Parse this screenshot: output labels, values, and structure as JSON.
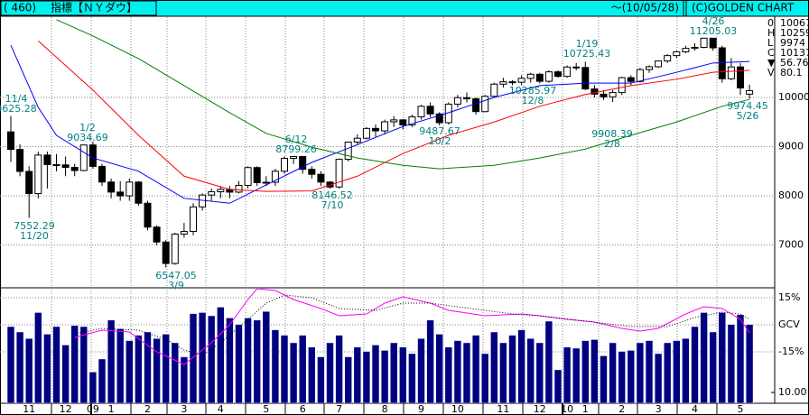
{
  "header": {
    "code": "( 460)",
    "title": "指標【ＮＹダウ】",
    "date": "～(10/05/28)",
    "brand": "(C)GOLDEN CHART"
  },
  "quote": [
    [
      "0",
      "10067"
    ],
    [
      "H",
      "10259"
    ],
    [
      "L",
      "9974"
    ],
    [
      "C",
      "10137"
    ],
    [
      "▼",
      "56.76"
    ],
    [
      "V",
      "80.1"
    ]
  ],
  "chart_data": {
    "type": "candlestick",
    "categories": [
      null,
      null,
      "11",
      null,
      null,
      null,
      "12",
      null,
      null,
      "09",
      null,
      "1",
      null,
      null,
      null,
      "2",
      null,
      null,
      null,
      "3",
      null,
      null,
      null,
      "4",
      null,
      null,
      null,
      null,
      "5",
      null,
      null,
      null,
      "6",
      null,
      null,
      null,
      "7",
      null,
      null,
      null,
      null,
      "8",
      null,
      null,
      null,
      "9",
      null,
      null,
      null,
      "10",
      null,
      null,
      null,
      null,
      "11",
      null,
      null,
      null,
      "12",
      null,
      null,
      "10",
      null,
      "1",
      null,
      null,
      null,
      "2",
      null,
      null,
      null,
      "3",
      null,
      null,
      null,
      "4",
      null,
      null,
      null,
      null,
      "5",
      null
    ],
    "open": [
      9300,
      8943,
      8497,
      8046,
      8829,
      8635,
      8629,
      8579,
      8515,
      9034,
      8599,
      8281,
      8077,
      8000,
      8280,
      7850,
      7365,
      7062,
      6626,
      7224,
      7278,
      7776,
      8017,
      8083,
      8131,
      8076,
      8212,
      8575,
      8268,
      8277,
      8500,
      8763,
      8799,
      8539,
      8438,
      8280,
      8180,
      8743,
      9093,
      9171,
      9370,
      9321,
      9505,
      9544,
      9441,
      9605,
      9820,
      9665,
      9487,
      9864,
      9995,
      9972,
      9712,
      10023,
      10270,
      10318,
      10309,
      10388,
      10471,
      10328,
      10520,
      10428,
      10618,
      10609,
      10172,
      10067,
      10012,
      10099,
      10402,
      10325,
      10566,
      10624,
      10741,
      10850,
      10927,
      10997,
      11018,
      11204,
      11008,
      10380,
      10620,
      10067
    ],
    "high": [
      9625.28,
      9050,
      8600,
      8900,
      8900,
      8850,
      8800,
      8650,
      9034.69,
      9100,
      8650,
      8350,
      8300,
      8350,
      8300,
      7900,
      7400,
      7100,
      7250,
      7450,
      7850,
      8050,
      8150,
      8200,
      8200,
      8300,
      8600,
      8600,
      8400,
      8550,
      8800,
      8799.26,
      8800,
      8600,
      8500,
      8300,
      8760,
      9100,
      9250,
      9400,
      9450,
      9550,
      9620,
      9560,
      9650,
      9850,
      9900,
      9700,
      9900,
      10050,
      10100,
      10000,
      10050,
      10300,
      10400,
      10350,
      10450,
      10500,
      10500,
      10550,
      10550,
      10650,
      10700,
      10725.43,
      10250,
      10150,
      10150,
      10420,
      10450,
      10600,
      10650,
      10750,
      10880,
      10950,
      11050,
      11100,
      11200,
      11205.03,
      11050,
      10800,
      10700,
      10259
    ],
    "low": [
      8690,
      8400,
      7552.29,
      7950,
      8150,
      8500,
      8400,
      8400,
      8500,
      8550,
      8200,
      7950,
      7900,
      7900,
      7800,
      7300,
      7000,
      6547.05,
      6600,
      7150,
      7200,
      7700,
      7900,
      7950,
      7950,
      8050,
      8150,
      8200,
      8200,
      8200,
      8450,
      8650,
      8450,
      8350,
      8200,
      8146.52,
      8150,
      8700,
      9050,
      9150,
      9200,
      9250,
      9400,
      9350,
      9400,
      9550,
      9600,
      9430,
      9450,
      9800,
      9900,
      9650,
      9700,
      10000,
      10200,
      10250,
      10250,
      10300,
      10285.97,
      10300,
      10400,
      10400,
      10550,
      10150,
      10000,
      9950,
      9908.39,
      10050,
      10250,
      10300,
      10500,
      10600,
      10700,
      10800,
      10900,
      10950,
      11000,
      10950,
      10300,
      10350,
      10050,
      9974.45
    ],
    "close": [
      8943,
      8497,
      8046,
      8829,
      8635,
      8629,
      8579,
      8515,
      9034,
      8599,
      8281,
      8077,
      8000,
      8280,
      7850,
      7365,
      7062,
      6626,
      7224,
      7278,
      7776,
      8017,
      8083,
      8131,
      8076,
      8212,
      8575,
      8268,
      8277,
      8500,
      8763,
      8799,
      8539,
      8438,
      8280,
      8180,
      8743,
      9093,
      9171,
      9370,
      9321,
      9505,
      9544,
      9441,
      9605,
      9820,
      9665,
      9487,
      9864,
      9995,
      9972,
      9712,
      10023,
      10270,
      10318,
      10309,
      10388,
      10471,
      10328,
      10520,
      10428,
      10618,
      10609,
      10172,
      10067,
      10012,
      10099,
      10402,
      10325,
      10566,
      10624,
      10741,
      10850,
      10927,
      10997,
      11018,
      11204,
      11008,
      10380,
      10620,
      10193,
      10137
    ],
    "ylim": [
      6150,
      11650
    ],
    "yticks": [
      10000,
      9000,
      8000,
      7000
    ],
    "up_color": "#ffffff",
    "down_color": "#000000",
    "series": [
      {
        "color": "#0000ff",
        "x": [
          0,
          3,
          5,
          9,
          14,
          19,
          24,
          28,
          33,
          38,
          43,
          48,
          53,
          58,
          63,
          68,
          73,
          77,
          81
        ],
        "values": [
          11060,
          9800,
          9230,
          8770,
          8500,
          7950,
          7850,
          8220,
          8680,
          9040,
          9410,
          9690,
          10000,
          10240,
          10290,
          10290,
          10510,
          10700,
          10730
        ]
      },
      {
        "color": "#ff0000",
        "x": [
          3,
          9,
          14,
          19,
          24,
          28,
          33,
          38,
          43,
          48,
          53,
          58,
          63,
          68,
          73,
          77,
          81
        ],
        "values": [
          11150,
          10150,
          9230,
          8400,
          8130,
          8090,
          8100,
          8400,
          8860,
          9230,
          9500,
          9820,
          10060,
          10240,
          10370,
          10510,
          10550
        ]
      },
      {
        "color": "#008000",
        "x": [
          5,
          9,
          14,
          19,
          24,
          28,
          33,
          38,
          43,
          47,
          53,
          58,
          63,
          68,
          73,
          78,
          81
        ],
        "values": [
          11580,
          11250,
          10790,
          10240,
          9690,
          9270,
          8990,
          8770,
          8620,
          8550,
          8620,
          8770,
          8950,
          9230,
          9500,
          9820,
          9960
        ]
      }
    ],
    "annotations": [
      {
        "date": "11/4",
        "value": 9625.28
      },
      {
        "date": "11/20",
        "value": 7552.29
      },
      {
        "date": "1/2",
        "value": 9034.69
      },
      {
        "date": "3/9",
        "value": 6547.05
      },
      {
        "date": "6/12",
        "value": 8799.26
      },
      {
        "date": "7/10",
        "value": 8146.52
      },
      {
        "date": "10/2",
        "value": 9487.67
      },
      {
        "date": "12/8",
        "value": 10285.97
      },
      {
        "date": "1/19",
        "value": 10725.43
      },
      {
        "date": "2/8",
        "value": 9908.39
      },
      {
        "date": "4/26",
        "value": 11205.03
      },
      {
        "date": "5/26",
        "value": 9974.45
      }
    ],
    "volume": {
      "color": "#000080",
      "ylim": [
        0,
        106
      ],
      "yticks": [
        {
          "value": 10,
          "label": "10.00"
        }
      ],
      "values": [
        71,
        66,
        60,
        84,
        64,
        71,
        54,
        72,
        71,
        29,
        41,
        77,
        69,
        58,
        63,
        66,
        60,
        64,
        56,
        43,
        83,
        84,
        81,
        89,
        79,
        73,
        79,
        77,
        85,
        68,
        63,
        56,
        63,
        52,
        43,
        56,
        63,
        43,
        52,
        48,
        54,
        49,
        56,
        52,
        46,
        60,
        77,
        64,
        52,
        58,
        56,
        63,
        46,
        66,
        56,
        63,
        68,
        60,
        56,
        76,
        31,
        52,
        51,
        58,
        59,
        44,
        56,
        48,
        49,
        56,
        58,
        46,
        56,
        58,
        60,
        71,
        84,
        66,
        84,
        73,
        82,
        73
      ]
    },
    "oscillator": {
      "ylim": [
        -43.5,
        20
      ],
      "yticks": [
        {
          "value": 15,
          "label": "15%"
        },
        {
          "value": 0,
          "label": "GCV"
        },
        {
          "value": -15,
          "label": "-15%"
        }
      ],
      "series": [
        {
          "color": "#ff00ff",
          "dash": false,
          "x": [
            7,
            10,
            13,
            16,
            19,
            22,
            24,
            26,
            27,
            29,
            31,
            34,
            36,
            39,
            41,
            43,
            46,
            48,
            52,
            56,
            58,
            61,
            64,
            67,
            69,
            71,
            74,
            76,
            78,
            80,
            81
          ],
          "values": [
            -7,
            -3,
            -4,
            -15,
            -22,
            -10,
            0,
            14,
            20,
            19,
            14,
            9,
            5,
            6,
            12,
            15.5,
            12,
            8,
            5,
            6,
            5,
            3,
            1.5,
            -2,
            -3.5,
            -2,
            6,
            10,
            9,
            3,
            -4.5
          ]
        },
        {
          "color": "#000000",
          "dash": true,
          "x": [
            7,
            10,
            14,
            17,
            19,
            21,
            23,
            26,
            28,
            30,
            33,
            36,
            40,
            43,
            46,
            49,
            55,
            58,
            63,
            68,
            72,
            75,
            78,
            80,
            81
          ],
          "values": [
            -5,
            -2,
            -3,
            -8,
            -14,
            -17,
            -10,
            3,
            12,
            16.5,
            15,
            9,
            8,
            12,
            12,
            10,
            6,
            5,
            2,
            -1,
            -1,
            4,
            7,
            6,
            3
          ]
        }
      ]
    }
  }
}
